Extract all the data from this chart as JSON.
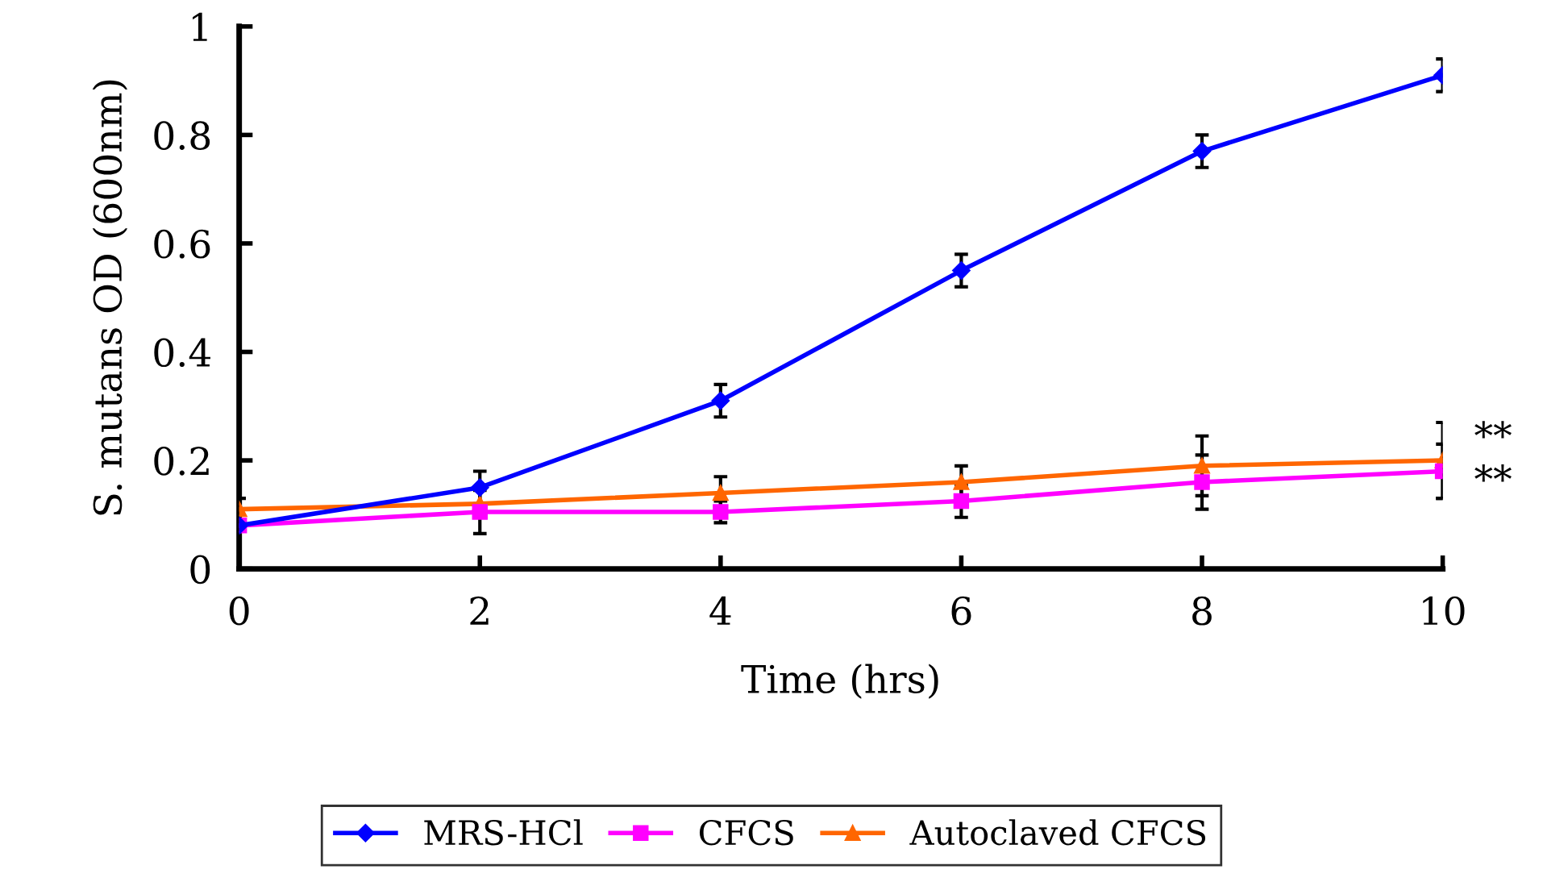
{
  "chart_data": {
    "type": "line",
    "xlabel": "Time (hrs)",
    "ylabel": "S. mutans OD (600nm)",
    "x": [
      0,
      2,
      4,
      6,
      8,
      10
    ],
    "series": [
      {
        "name": "MRS-HCl",
        "color": "#0000ff",
        "marker": "diamond",
        "values": [
          0.08,
          0.15,
          0.31,
          0.55,
          0.77,
          0.91
        ],
        "errors": [
          null,
          0.03,
          0.03,
          0.03,
          0.03,
          0.03
        ]
      },
      {
        "name": "CFCS",
        "color": "#ff00ff",
        "marker": "square",
        "values": [
          0.08,
          0.105,
          0.105,
          0.125,
          0.16,
          0.18
        ],
        "errors": [
          null,
          0.04,
          0.02,
          0.03,
          0.05,
          0.05
        ]
      },
      {
        "name": "Autoclaved CFCS",
        "color": "#ff6600",
        "marker": "triangle",
        "values": [
          0.11,
          0.12,
          0.14,
          0.16,
          0.19,
          0.2
        ],
        "errors": [
          0.02,
          null,
          0.03,
          0.03,
          0.055,
          0.07
        ]
      }
    ],
    "xlim": [
      0,
      10
    ],
    "xticks": [
      0,
      2,
      4,
      6,
      8,
      10
    ],
    "ylim": [
      0,
      1
    ],
    "yticks": [
      0,
      0.2,
      0.4,
      0.6,
      0.8,
      1
    ],
    "grid": false,
    "legend": "bottom",
    "annotations": [
      {
        "text": "**",
        "x": 10,
        "y": 0.24
      },
      {
        "text": "**",
        "x": 10,
        "y": 0.16
      }
    ]
  }
}
